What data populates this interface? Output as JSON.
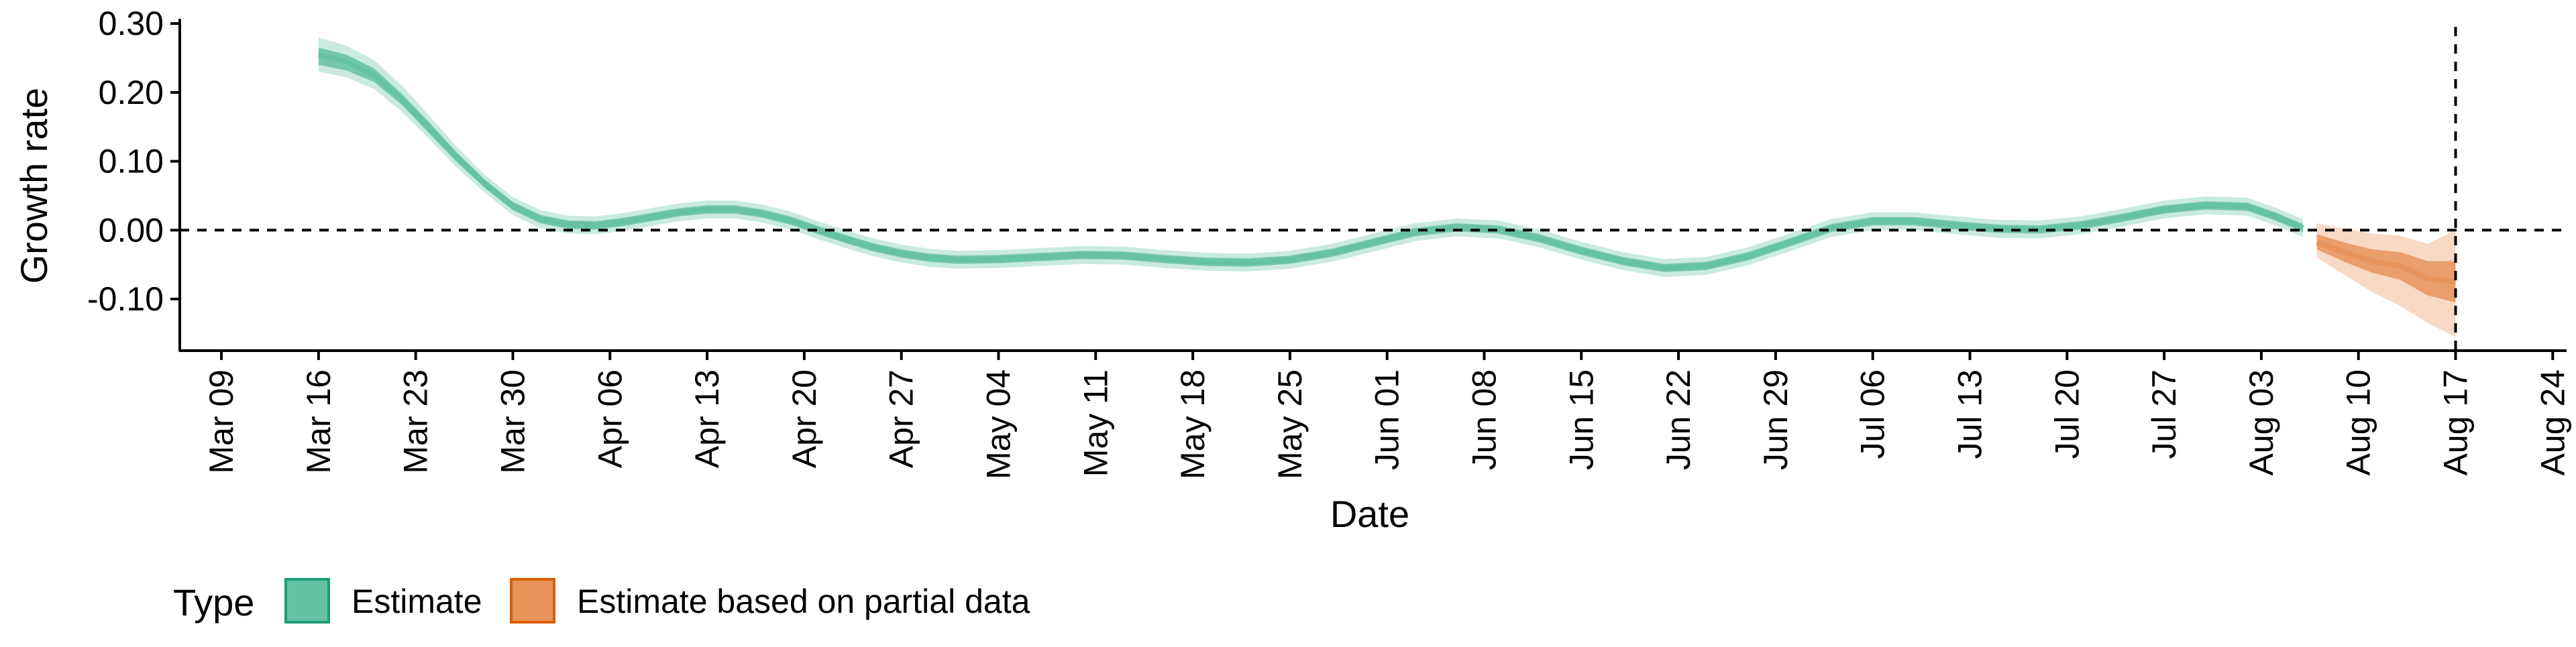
{
  "chart_data": {
    "type": "area",
    "xlabel": "Date",
    "ylabel": "Growth rate",
    "x_is_date": true,
    "x_year": 2020,
    "xlim": [
      "2020-03-06",
      "2020-08-25"
    ],
    "ylim": [
      -0.175,
      0.305
    ],
    "x_ticks": [
      {
        "date": "2020-03-09",
        "label": "Mar 09"
      },
      {
        "date": "2020-03-16",
        "label": "Mar 16"
      },
      {
        "date": "2020-03-23",
        "label": "Mar 23"
      },
      {
        "date": "2020-03-30",
        "label": "Mar 30"
      },
      {
        "date": "2020-04-06",
        "label": "Apr 06"
      },
      {
        "date": "2020-04-13",
        "label": "Apr 13"
      },
      {
        "date": "2020-04-20",
        "label": "Apr 20"
      },
      {
        "date": "2020-04-27",
        "label": "Apr 27"
      },
      {
        "date": "2020-05-04",
        "label": "May 04"
      },
      {
        "date": "2020-05-11",
        "label": "May 11"
      },
      {
        "date": "2020-05-18",
        "label": "May 18"
      },
      {
        "date": "2020-05-25",
        "label": "May 25"
      },
      {
        "date": "2020-06-01",
        "label": "Jun 01"
      },
      {
        "date": "2020-06-08",
        "label": "Jun 08"
      },
      {
        "date": "2020-06-15",
        "label": "Jun 15"
      },
      {
        "date": "2020-06-22",
        "label": "Jun 22"
      },
      {
        "date": "2020-06-29",
        "label": "Jun 29"
      },
      {
        "date": "2020-07-06",
        "label": "Jul 06"
      },
      {
        "date": "2020-07-13",
        "label": "Jul 13"
      },
      {
        "date": "2020-07-20",
        "label": "Jul 20"
      },
      {
        "date": "2020-07-27",
        "label": "Jul 27"
      },
      {
        "date": "2020-08-03",
        "label": "Aug 03"
      },
      {
        "date": "2020-08-10",
        "label": "Aug 10"
      },
      {
        "date": "2020-08-17",
        "label": "Aug 17"
      },
      {
        "date": "2020-08-24",
        "label": "Aug 24"
      }
    ],
    "y_ticks": [
      {
        "value": 0.3,
        "label": "0.30"
      },
      {
        "value": 0.2,
        "label": "0.20"
      },
      {
        "value": 0.1,
        "label": "0.10"
      },
      {
        "value": 0.0,
        "label": "0.00"
      },
      {
        "value": -0.1,
        "label": "-0.10"
      }
    ],
    "hline": 0.0,
    "vline": "2020-08-17",
    "grid": false,
    "legend": {
      "position": "bottom-left",
      "title": "Type",
      "entries": [
        {
          "label": "Estimate",
          "fill": "#66c2a5",
          "stroke": "#1b9e77"
        },
        {
          "label": "Estimate based on partial data",
          "fill": "#e8935a",
          "stroke": "#d95f02"
        }
      ]
    },
    "series": [
      {
        "name": "Estimate",
        "color": "#66c2a5",
        "points": [
          {
            "x": "2020-03-16",
            "median": 0.255,
            "lo50": 0.24,
            "hi50": 0.265,
            "lo90": 0.23,
            "hi90": 0.28
          },
          {
            "x": "2020-03-18",
            "median": 0.245,
            "lo50": 0.232,
            "hi50": 0.255,
            "lo90": 0.222,
            "hi90": 0.268
          },
          {
            "x": "2020-03-20",
            "median": 0.225,
            "lo50": 0.215,
            "hi50": 0.235,
            "lo90": 0.205,
            "hi90": 0.247
          },
          {
            "x": "2020-03-22",
            "median": 0.19,
            "lo50": 0.182,
            "hi50": 0.198,
            "lo90": 0.172,
            "hi90": 0.21
          },
          {
            "x": "2020-03-24",
            "median": 0.148,
            "lo50": 0.14,
            "hi50": 0.156,
            "lo90": 0.132,
            "hi90": 0.166
          },
          {
            "x": "2020-03-26",
            "median": 0.105,
            "lo50": 0.098,
            "hi50": 0.112,
            "lo90": 0.09,
            "hi90": 0.12
          },
          {
            "x": "2020-03-28",
            "median": 0.067,
            "lo50": 0.061,
            "hi50": 0.073,
            "lo90": 0.054,
            "hi90": 0.08
          },
          {
            "x": "2020-03-30",
            "median": 0.035,
            "lo50": 0.029,
            "hi50": 0.041,
            "lo90": 0.022,
            "hi90": 0.048
          },
          {
            "x": "2020-04-01",
            "median": 0.016,
            "lo50": 0.01,
            "hi50": 0.022,
            "lo90": 0.003,
            "hi90": 0.029
          },
          {
            "x": "2020-04-03",
            "median": 0.008,
            "lo50": 0.002,
            "hi50": 0.014,
            "lo90": -0.005,
            "hi90": 0.021
          },
          {
            "x": "2020-04-05",
            "median": 0.007,
            "lo50": 0.001,
            "hi50": 0.013,
            "lo90": -0.006,
            "hi90": 0.02
          },
          {
            "x": "2020-04-07",
            "median": 0.012,
            "lo50": 0.006,
            "hi50": 0.018,
            "lo90": -0.001,
            "hi90": 0.025
          },
          {
            "x": "2020-04-09",
            "median": 0.019,
            "lo50": 0.013,
            "hi50": 0.025,
            "lo90": 0.006,
            "hi90": 0.032
          },
          {
            "x": "2020-04-11",
            "median": 0.026,
            "lo50": 0.02,
            "hi50": 0.032,
            "lo90": 0.013,
            "hi90": 0.039
          },
          {
            "x": "2020-04-13",
            "median": 0.03,
            "lo50": 0.024,
            "hi50": 0.036,
            "lo90": 0.017,
            "hi90": 0.043
          },
          {
            "x": "2020-04-15",
            "median": 0.03,
            "lo50": 0.024,
            "hi50": 0.036,
            "lo90": 0.017,
            "hi90": 0.043
          },
          {
            "x": "2020-04-17",
            "median": 0.024,
            "lo50": 0.018,
            "hi50": 0.03,
            "lo90": 0.011,
            "hi90": 0.037
          },
          {
            "x": "2020-04-19",
            "median": 0.014,
            "lo50": 0.008,
            "hi50": 0.02,
            "lo90": 0.001,
            "hi90": 0.027
          },
          {
            "x": "2020-04-21",
            "median": 0.0,
            "lo50": -0.006,
            "hi50": 0.006,
            "lo90": -0.013,
            "hi90": 0.013
          },
          {
            "x": "2020-04-23",
            "median": -0.013,
            "lo50": -0.019,
            "hi50": -0.007,
            "lo90": -0.026,
            "hi90": 0.0
          },
          {
            "x": "2020-04-25",
            "median": -0.025,
            "lo50": -0.031,
            "hi50": -0.019,
            "lo90": -0.038,
            "hi90": -0.012
          },
          {
            "x": "2020-04-27",
            "median": -0.034,
            "lo50": -0.04,
            "hi50": -0.028,
            "lo90": -0.047,
            "hi90": -0.021
          },
          {
            "x": "2020-04-29",
            "median": -0.04,
            "lo50": -0.046,
            "hi50": -0.034,
            "lo90": -0.053,
            "hi90": -0.027
          },
          {
            "x": "2020-05-01",
            "median": -0.043,
            "lo50": -0.049,
            "hi50": -0.037,
            "lo90": -0.056,
            "hi90": -0.03
          },
          {
            "x": "2020-05-04",
            "median": -0.042,
            "lo50": -0.048,
            "hi50": -0.036,
            "lo90": -0.055,
            "hi90": -0.029
          },
          {
            "x": "2020-05-07",
            "median": -0.039,
            "lo50": -0.045,
            "hi50": -0.033,
            "lo90": -0.052,
            "hi90": -0.026
          },
          {
            "x": "2020-05-10",
            "median": -0.036,
            "lo50": -0.042,
            "hi50": -0.03,
            "lo90": -0.049,
            "hi90": -0.023
          },
          {
            "x": "2020-05-13",
            "median": -0.037,
            "lo50": -0.043,
            "hi50": -0.031,
            "lo90": -0.05,
            "hi90": -0.024
          },
          {
            "x": "2020-05-16",
            "median": -0.042,
            "lo50": -0.048,
            "hi50": -0.036,
            "lo90": -0.055,
            "hi90": -0.029
          },
          {
            "x": "2020-05-19",
            "median": -0.046,
            "lo50": -0.052,
            "hi50": -0.04,
            "lo90": -0.059,
            "hi90": -0.033
          },
          {
            "x": "2020-05-22",
            "median": -0.047,
            "lo50": -0.053,
            "hi50": -0.041,
            "lo90": -0.06,
            "hi90": -0.034
          },
          {
            "x": "2020-05-25",
            "median": -0.043,
            "lo50": -0.049,
            "hi50": -0.037,
            "lo90": -0.056,
            "hi90": -0.03
          },
          {
            "x": "2020-05-28",
            "median": -0.033,
            "lo50": -0.039,
            "hi50": -0.027,
            "lo90": -0.046,
            "hi90": -0.02
          },
          {
            "x": "2020-05-31",
            "median": -0.018,
            "lo50": -0.024,
            "hi50": -0.012,
            "lo90": -0.031,
            "hi90": -0.005
          },
          {
            "x": "2020-06-03",
            "median": -0.003,
            "lo50": -0.009,
            "hi50": 0.003,
            "lo90": -0.016,
            "hi90": 0.01
          },
          {
            "x": "2020-06-06",
            "median": 0.004,
            "lo50": -0.002,
            "hi50": 0.01,
            "lo90": -0.009,
            "hi90": 0.017
          },
          {
            "x": "2020-06-09",
            "median": 0.001,
            "lo50": -0.005,
            "hi50": 0.007,
            "lo90": -0.012,
            "hi90": 0.014
          },
          {
            "x": "2020-06-12",
            "median": -0.012,
            "lo50": -0.018,
            "hi50": -0.006,
            "lo90": -0.025,
            "hi90": 0.001
          },
          {
            "x": "2020-06-15",
            "median": -0.03,
            "lo50": -0.036,
            "hi50": -0.024,
            "lo90": -0.043,
            "hi90": -0.017
          },
          {
            "x": "2020-06-18",
            "median": -0.045,
            "lo50": -0.051,
            "hi50": -0.039,
            "lo90": -0.058,
            "hi90": -0.032
          },
          {
            "x": "2020-06-21",
            "median": -0.055,
            "lo50": -0.061,
            "hi50": -0.049,
            "lo90": -0.068,
            "hi90": -0.042
          },
          {
            "x": "2020-06-24",
            "median": -0.052,
            "lo50": -0.058,
            "hi50": -0.046,
            "lo90": -0.065,
            "hi90": -0.039
          },
          {
            "x": "2020-06-27",
            "median": -0.038,
            "lo50": -0.044,
            "hi50": -0.032,
            "lo90": -0.051,
            "hi90": -0.025
          },
          {
            "x": "2020-06-30",
            "median": -0.018,
            "lo50": -0.024,
            "hi50": -0.012,
            "lo90": -0.031,
            "hi90": -0.005
          },
          {
            "x": "2020-07-03",
            "median": 0.003,
            "lo50": -0.003,
            "hi50": 0.009,
            "lo90": -0.01,
            "hi90": 0.016
          },
          {
            "x": "2020-07-06",
            "median": 0.013,
            "lo50": 0.007,
            "hi50": 0.019,
            "lo90": 0.0,
            "hi90": 0.026
          },
          {
            "x": "2020-07-09",
            "median": 0.013,
            "lo50": 0.007,
            "hi50": 0.019,
            "lo90": 0.0,
            "hi90": 0.026
          },
          {
            "x": "2020-07-12",
            "median": 0.007,
            "lo50": 0.001,
            "hi50": 0.013,
            "lo90": -0.006,
            "hi90": 0.02
          },
          {
            "x": "2020-07-15",
            "median": 0.002,
            "lo50": -0.004,
            "hi50": 0.008,
            "lo90": -0.011,
            "hi90": 0.015
          },
          {
            "x": "2020-07-18",
            "median": 0.001,
            "lo50": -0.005,
            "hi50": 0.007,
            "lo90": -0.012,
            "hi90": 0.014
          },
          {
            "x": "2020-07-21",
            "median": 0.007,
            "lo50": 0.001,
            "hi50": 0.013,
            "lo90": -0.006,
            "hi90": 0.02
          },
          {
            "x": "2020-07-24",
            "median": 0.018,
            "lo50": 0.012,
            "hi50": 0.024,
            "lo90": 0.005,
            "hi90": 0.031
          },
          {
            "x": "2020-07-27",
            "median": 0.03,
            "lo50": 0.024,
            "hi50": 0.036,
            "lo90": 0.017,
            "hi90": 0.043
          },
          {
            "x": "2020-07-30",
            "median": 0.036,
            "lo50": 0.03,
            "hi50": 0.042,
            "lo90": 0.023,
            "hi90": 0.049
          },
          {
            "x": "2020-08-02",
            "median": 0.034,
            "lo50": 0.028,
            "hi50": 0.04,
            "lo90": 0.021,
            "hi90": 0.047
          },
          {
            "x": "2020-08-04",
            "median": 0.02,
            "lo50": 0.014,
            "hi50": 0.026,
            "lo90": 0.007,
            "hi90": 0.033
          },
          {
            "x": "2020-08-06",
            "median": 0.003,
            "lo50": -0.003,
            "hi50": 0.009,
            "lo90": -0.01,
            "hi90": 0.016
          }
        ]
      },
      {
        "name": "Estimate based on partial data",
        "color": "#e8935a",
        "points": [
          {
            "x": "2020-08-07",
            "median": -0.018,
            "lo50": -0.028,
            "hi50": -0.006,
            "lo90": -0.04,
            "hi90": 0.01
          },
          {
            "x": "2020-08-09",
            "median": -0.032,
            "lo50": -0.046,
            "hi50": -0.018,
            "lo90": -0.065,
            "hi90": 0.002
          },
          {
            "x": "2020-08-11",
            "median": -0.045,
            "lo50": -0.062,
            "hi50": -0.028,
            "lo90": -0.09,
            "hi90": -0.005
          },
          {
            "x": "2020-08-13",
            "median": -0.052,
            "lo50": -0.072,
            "hi50": -0.032,
            "lo90": -0.11,
            "hi90": -0.008
          },
          {
            "x": "2020-08-15",
            "median": -0.07,
            "lo50": -0.095,
            "hi50": -0.045,
            "lo90": -0.135,
            "hi90": -0.02
          },
          {
            "x": "2020-08-17",
            "median": -0.075,
            "lo50": -0.105,
            "hi50": -0.045,
            "lo90": -0.155,
            "hi90": 0.0
          }
        ]
      }
    ]
  }
}
